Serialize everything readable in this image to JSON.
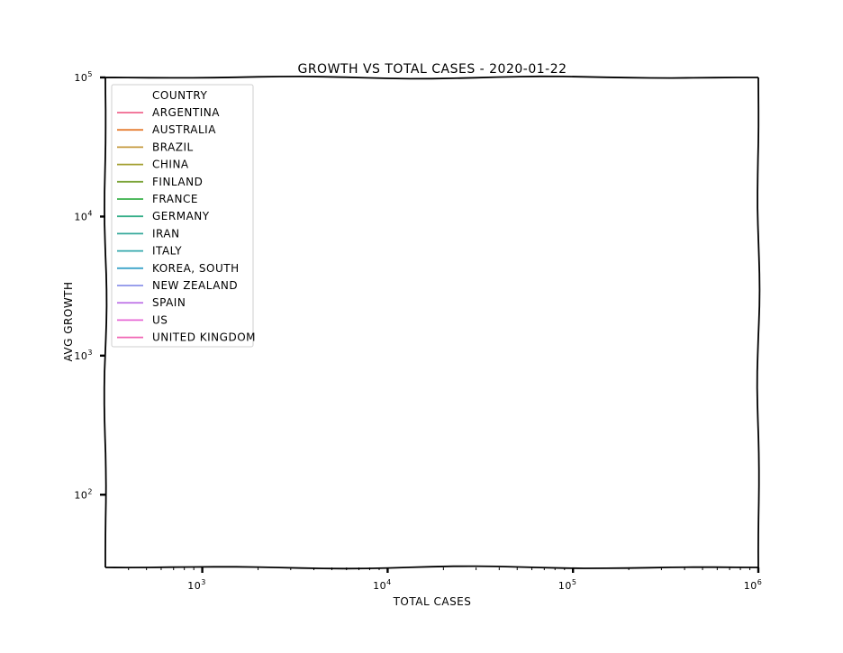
{
  "chart_data": {
    "type": "line",
    "title": "GROWTH VS TOTAL CASES - 2020-01-22",
    "xlabel": "TOTAL CASES",
    "ylabel": "AVG GROWTH",
    "x_scale": "log",
    "y_scale": "log",
    "xlim": [
      300,
      1000000
    ],
    "ylim": [
      30,
      100000
    ],
    "x_ticks": [
      {
        "value": 1000,
        "base": "10",
        "exp": "3"
      },
      {
        "value": 10000,
        "base": "10",
        "exp": "4"
      },
      {
        "value": 100000,
        "base": "10",
        "exp": "5"
      },
      {
        "value": 1000000,
        "base": "10",
        "exp": "6"
      }
    ],
    "y_ticks": [
      {
        "value": 100,
        "base": "10",
        "exp": "2"
      },
      {
        "value": 1000,
        "base": "10",
        "exp": "3"
      },
      {
        "value": 10000,
        "base": "10",
        "exp": "4"
      },
      {
        "value": 100000,
        "base": "10",
        "exp": "5"
      }
    ],
    "grid": false,
    "legend": {
      "placement": "upper-left",
      "title": "COUNTRY",
      "entries": [
        {
          "name": "ARGENTINA",
          "color": "#f0678f"
        },
        {
          "name": "AUSTRALIA",
          "color": "#e67e33"
        },
        {
          "name": "BRAZIL",
          "color": "#c59a3e"
        },
        {
          "name": "CHINA",
          "color": "#a29e2e"
        },
        {
          "name": "FINLAND",
          "color": "#7da53a"
        },
        {
          "name": "FRANCE",
          "color": "#38b04a"
        },
        {
          "name": "GERMANY",
          "color": "#34ad87"
        },
        {
          "name": "IRAN",
          "color": "#34a89a"
        },
        {
          "name": "ITALY",
          "color": "#35a8ad"
        },
        {
          "name": "KOREA, SOUTH",
          "color": "#3ba3c9"
        },
        {
          "name": "NEW ZEALAND",
          "color": "#8b93ea"
        },
        {
          "name": "SPAIN",
          "color": "#c17be8"
        },
        {
          "name": "US",
          "color": "#e768d6"
        },
        {
          "name": "UNITED KINGDOM",
          "color": "#f066b4"
        }
      ]
    },
    "series": [
      {
        "name": "ARGENTINA",
        "x": [],
        "y": []
      },
      {
        "name": "AUSTRALIA",
        "x": [],
        "y": []
      },
      {
        "name": "BRAZIL",
        "x": [],
        "y": []
      },
      {
        "name": "CHINA",
        "x": [],
        "y": []
      },
      {
        "name": "FINLAND",
        "x": [],
        "y": []
      },
      {
        "name": "FRANCE",
        "x": [],
        "y": []
      },
      {
        "name": "GERMANY",
        "x": [],
        "y": []
      },
      {
        "name": "IRAN",
        "x": [],
        "y": []
      },
      {
        "name": "ITALY",
        "x": [],
        "y": []
      },
      {
        "name": "KOREA, SOUTH",
        "x": [],
        "y": []
      },
      {
        "name": "NEW ZEALAND",
        "x": [],
        "y": []
      },
      {
        "name": "SPAIN",
        "x": [],
        "y": []
      },
      {
        "name": "US",
        "x": [],
        "y": []
      },
      {
        "name": "UNITED KINGDOM",
        "x": [],
        "y": []
      }
    ]
  }
}
